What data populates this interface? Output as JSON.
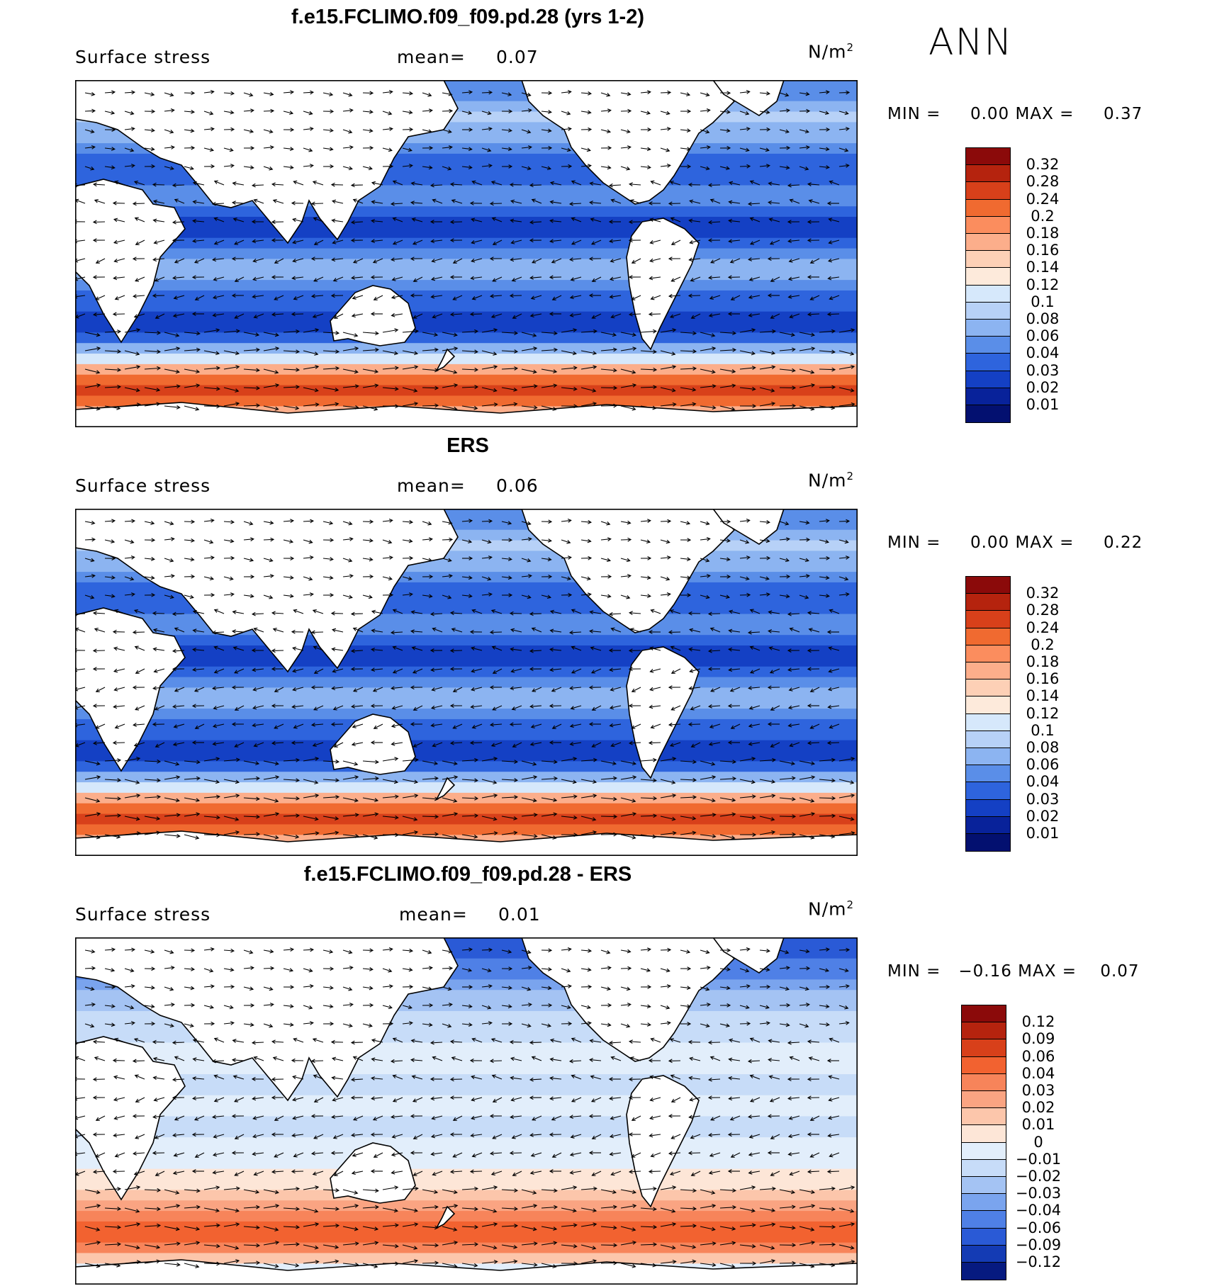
{
  "season": "ANN",
  "panels": [
    {
      "title": "f.e15.FCLIMO.f09_f09.pd.28 (yrs 1-2)",
      "variable": "Surface stress",
      "mean_label": "mean=",
      "mean_value": "0.07",
      "units": "N/m",
      "units_exp": "2",
      "min_label": "MIN =",
      "min_value": "0.00",
      "max_label": "MAX =",
      "max_value": "0.37",
      "colorbar_labels": [
        "0.32",
        "0.28",
        "0.24",
        "0.2",
        "0.18",
        "0.16",
        "0.14",
        "0.12",
        "0.1",
        "0.08",
        "0.06",
        "0.04",
        "0.03",
        "0.02",
        "0.01"
      ],
      "colorbar_colors": [
        "#8b0a0a",
        "#b5230e",
        "#d8401a",
        "#f06a30",
        "#fb8d5e",
        "#fcae8b",
        "#fdd0b6",
        "#fdeadb",
        "#d6e8fb",
        "#b7d1f7",
        "#8cb4f1",
        "#5a8ee8",
        "#2e64dd",
        "#1440c4",
        "#08229a",
        "#031070"
      ]
    },
    {
      "title": "ERS",
      "variable": "Surface stress",
      "mean_label": "mean=",
      "mean_value": "0.06",
      "units": "N/m",
      "units_exp": "2",
      "min_label": "MIN =",
      "min_value": "0.00",
      "max_label": "MAX =",
      "max_value": "0.22",
      "colorbar_labels": [
        "0.32",
        "0.28",
        "0.24",
        "0.2",
        "0.18",
        "0.16",
        "0.14",
        "0.12",
        "0.1",
        "0.08",
        "0.06",
        "0.04",
        "0.03",
        "0.02",
        "0.01"
      ],
      "colorbar_colors": [
        "#8b0a0a",
        "#b5230e",
        "#d8401a",
        "#f06a30",
        "#fb8d5e",
        "#fcae8b",
        "#fdd0b6",
        "#fdeadb",
        "#d6e8fb",
        "#b7d1f7",
        "#8cb4f1",
        "#5a8ee8",
        "#2e64dd",
        "#1440c4",
        "#08229a",
        "#031070"
      ]
    },
    {
      "title": "f.e15.FCLIMO.f09_f09.pd.28 - ERS",
      "variable": "Surface stress",
      "mean_label": "mean=",
      "mean_value": "0.01",
      "units": "N/m",
      "units_exp": "2",
      "min_label": "MIN =",
      "min_value": "−0.16",
      "max_label": "MAX =",
      "max_value": "0.07",
      "colorbar_labels": [
        "0.12",
        "0.09",
        "0.06",
        "0.04",
        "0.03",
        "0.02",
        "0.01",
        "0",
        "−0.01",
        "−0.02",
        "−0.03",
        "−0.04",
        "−0.06",
        "−0.09",
        "−0.12"
      ],
      "colorbar_colors": [
        "#8b0a0a",
        "#b5230e",
        "#d8401a",
        "#f26230",
        "#f7845a",
        "#faa482",
        "#fcc6ab",
        "#fde6d7",
        "#e2eefb",
        "#c7dcf8",
        "#a4c3f3",
        "#7aa4ee",
        "#4f80e6",
        "#2a5ad6",
        "#143bb4",
        "#061a80"
      ]
    }
  ]
}
